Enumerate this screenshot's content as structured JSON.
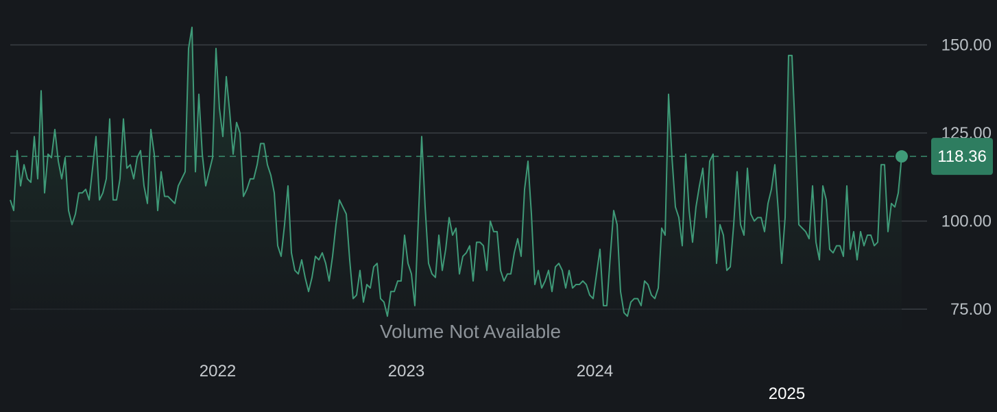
{
  "chart_data": {
    "type": "line",
    "series": [
      {
        "values": [
          106,
          103,
          120,
          110,
          116,
          112,
          111,
          124,
          112,
          137,
          108,
          119,
          118,
          126,
          117,
          112,
          118,
          103,
          99,
          102,
          108,
          108,
          109,
          106,
          115,
          124,
          106,
          108,
          112,
          129,
          106,
          106,
          112,
          129,
          115,
          116,
          112,
          118,
          120,
          110,
          105,
          126,
          119,
          103,
          114,
          107,
          107,
          106,
          105,
          110,
          112,
          114,
          149,
          155,
          114,
          136,
          119,
          110,
          114,
          118,
          149,
          132,
          124,
          141,
          131,
          119,
          128,
          125,
          107,
          109,
          112,
          112,
          116,
          122,
          122,
          116,
          113,
          108,
          93,
          90,
          99,
          110,
          91,
          86,
          85,
          89,
          84,
          80,
          84,
          90,
          89,
          91,
          88,
          83,
          90,
          99,
          106,
          104,
          102,
          89,
          78,
          79,
          86,
          77,
          82,
          81,
          87,
          88,
          78,
          77,
          73,
          80,
          80,
          83,
          83,
          96,
          88,
          85,
          76,
          100,
          124,
          104,
          88,
          85,
          84,
          96,
          86,
          92,
          101,
          96,
          98,
          85,
          90,
          91,
          93,
          83,
          94,
          94,
          93,
          86,
          100,
          97,
          97,
          86,
          83,
          85,
          85,
          91,
          95,
          90,
          109,
          117,
          102,
          82,
          86,
          81,
          83,
          86,
          80,
          87,
          88,
          86,
          81,
          86,
          81,
          82,
          82,
          83,
          82,
          79,
          78,
          85,
          92,
          76,
          76,
          90,
          103,
          99,
          80,
          74,
          73,
          77,
          78,
          78,
          76,
          83,
          82,
          79,
          78,
          81,
          98,
          96,
          136,
          118,
          104,
          101,
          93,
          119,
          103,
          94,
          104,
          110,
          115,
          101,
          117,
          119,
          88,
          99,
          96,
          86,
          87,
          99,
          114,
          99,
          96,
          115,
          102,
          100,
          101,
          101,
          97,
          105,
          109,
          116,
          103,
          88,
          101,
          147,
          147,
          124,
          99,
          98,
          97,
          95,
          110,
          94,
          89,
          110,
          106,
          92,
          91,
          93,
          93,
          90,
          110,
          92,
          97,
          89,
          97,
          93,
          96,
          96,
          93,
          94,
          116,
          116,
          97,
          105,
          104,
          108,
          118.36
        ]
      }
    ],
    "y_ticks": [
      "150.00",
      "125.00",
      "100.00",
      "75.00"
    ],
    "y_tick_values": [
      150,
      125,
      100,
      75
    ],
    "ylim": [
      65,
      160
    ],
    "x_ticks": [
      "2022",
      "2023",
      "2024",
      "2025"
    ],
    "x_tick_positions": [
      60.5,
      115.5,
      170.5,
      226.5
    ],
    "last_value_label": "118.36",
    "last_value": 118.36,
    "note": "Volume Not Available",
    "grid": true,
    "colors": {
      "background": "#16191d",
      "line": "#3f9a78",
      "grid": "#3a3f44",
      "badge": "#2e7d60",
      "area_top": "#1f3a30",
      "area_bottom": "#16191d"
    }
  }
}
